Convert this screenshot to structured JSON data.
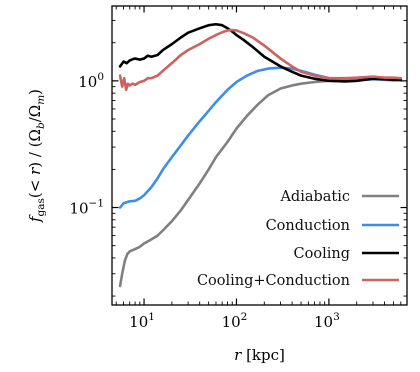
{
  "chart_data": {
    "type": "line",
    "x_scale": "log",
    "y_scale": "log",
    "xlim": [
      4.5,
      7000
    ],
    "ylim": [
      0.017,
      3.9
    ],
    "xlabel_main": "r",
    "xlabel_unit": "[kpc]",
    "ylabel": "f_gas(< r) / (Ω_b/Ω_m)",
    "grid": false,
    "legend_position": "bottom-right",
    "x_ticks": [
      {
        "value": 10,
        "base": "10",
        "exp": "1"
      },
      {
        "value": 100,
        "base": "10",
        "exp": "2"
      },
      {
        "value": 1000,
        "base": "10",
        "exp": "3"
      }
    ],
    "y_ticks": [
      {
        "value": 0.1,
        "base": "10",
        "exp": "−1"
      },
      {
        "value": 1,
        "base": "10",
        "exp": "0"
      }
    ],
    "series": [
      {
        "name": "Adiabatic",
        "color": "#808080",
        "x": [
          5.5,
          5.8,
          6.2,
          6.6,
          7.0,
          7.5,
          8,
          9,
          10,
          11,
          12,
          14,
          16,
          20,
          25,
          30,
          40,
          50,
          60,
          80,
          100,
          130,
          170,
          220,
          300,
          400,
          500,
          700,
          1000,
          1500,
          2000,
          3000,
          4000,
          5000,
          6000
        ],
        "y": [
          0.024,
          0.03,
          0.038,
          0.043,
          0.045,
          0.046,
          0.047,
          0.049,
          0.052,
          0.054,
          0.056,
          0.06,
          0.066,
          0.078,
          0.095,
          0.115,
          0.155,
          0.2,
          0.25,
          0.33,
          0.42,
          0.53,
          0.65,
          0.77,
          0.87,
          0.92,
          0.95,
          0.98,
          1.0,
          1.01,
          1.02,
          1.04,
          1.03,
          1.02,
          1.02
        ]
      },
      {
        "name": "Conduction",
        "color": "#3c8ee8",
        "x": [
          5.5,
          6,
          7,
          8,
          9,
          10,
          11,
          12,
          14,
          16,
          20,
          25,
          30,
          40,
          50,
          60,
          80,
          100,
          130,
          170,
          220,
          300,
          400,
          500,
          700,
          1000,
          1500,
          2000,
          3000,
          4000,
          5000,
          6000
        ],
        "y": [
          0.1,
          0.108,
          0.112,
          0.113,
          0.118,
          0.125,
          0.135,
          0.145,
          0.17,
          0.2,
          0.25,
          0.31,
          0.37,
          0.48,
          0.58,
          0.68,
          0.85,
          0.98,
          1.1,
          1.2,
          1.25,
          1.27,
          1.25,
          1.2,
          1.12,
          1.05,
          1.02,
          1.01,
          1.03,
          1.02,
          1.01,
          1.01
        ]
      },
      {
        "name": "Cooling",
        "color": "#000000",
        "x": [
          5.5,
          6,
          6.5,
          7,
          7.5,
          8,
          9,
          10,
          11,
          12,
          14,
          16,
          20,
          25,
          30,
          40,
          50,
          60,
          70,
          80,
          90,
          100,
          120,
          150,
          200,
          300,
          400,
          500,
          700,
          1000,
          1500,
          2000,
          3000,
          4000,
          5000,
          6000
        ],
        "y": [
          1.3,
          1.42,
          1.38,
          1.45,
          1.48,
          1.5,
          1.47,
          1.5,
          1.58,
          1.55,
          1.6,
          1.75,
          1.95,
          2.2,
          2.4,
          2.6,
          2.75,
          2.8,
          2.75,
          2.6,
          2.45,
          2.3,
          2.1,
          1.85,
          1.55,
          1.3,
          1.18,
          1.1,
          1.04,
          1.0,
          0.99,
          1.0,
          1.04,
          1.03,
          1.02,
          1.02
        ]
      },
      {
        "name": "Cooling+Conduction",
        "color": "#cc6262",
        "x": [
          5.5,
          5.8,
          6.1,
          6.4,
          6.7,
          7,
          7.5,
          8,
          9,
          10,
          11,
          12,
          14,
          16,
          20,
          25,
          30,
          40,
          50,
          60,
          70,
          80,
          90,
          100,
          120,
          150,
          200,
          300,
          400,
          500,
          700,
          1000,
          1500,
          2000,
          3000,
          4000,
          5000,
          6000
        ],
        "y": [
          1.1,
          0.9,
          1.05,
          0.85,
          0.95,
          0.92,
          0.95,
          0.93,
          0.98,
          1.0,
          1.05,
          1.05,
          1.1,
          1.2,
          1.38,
          1.6,
          1.75,
          1.95,
          2.15,
          2.3,
          2.42,
          2.5,
          2.52,
          2.5,
          2.38,
          2.2,
          1.9,
          1.5,
          1.3,
          1.18,
          1.1,
          1.05,
          1.05,
          1.06,
          1.08,
          1.06,
          1.06,
          1.05
        ]
      }
    ]
  }
}
